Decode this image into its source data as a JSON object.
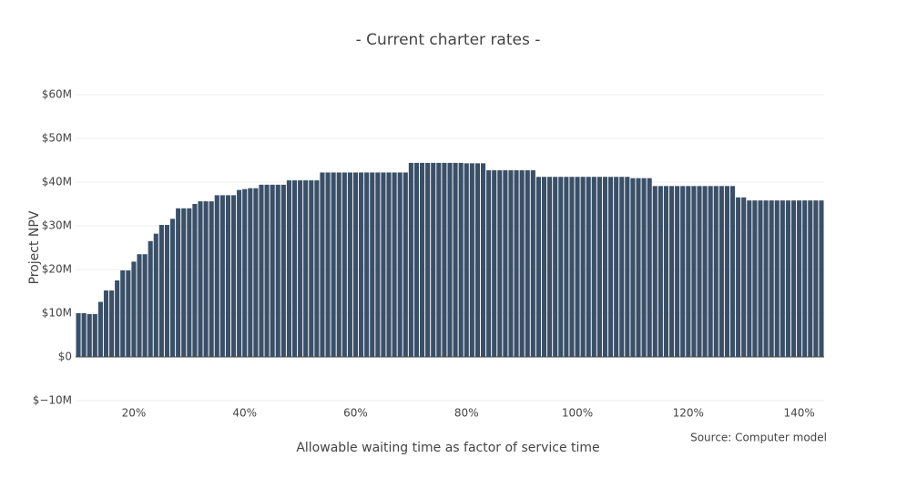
{
  "chart_data": {
    "type": "bar",
    "title": "-  Current charter rates  -",
    "x_label": "Allowable waiting time as factor of service time",
    "y_label": "Project NPV",
    "annotation": "Source: Computer model",
    "color": "#3a5069",
    "grid": true,
    "x": [
      10,
      11,
      12,
      13,
      14,
      15,
      16,
      17,
      18,
      19,
      20,
      21,
      22,
      23,
      24,
      25,
      26,
      27,
      28,
      29,
      30,
      31,
      32,
      33,
      34,
      35,
      36,
      37,
      38,
      39,
      40,
      41,
      42,
      43,
      44,
      45,
      46,
      47,
      48,
      49,
      50,
      51,
      52,
      53,
      54,
      55,
      56,
      57,
      58,
      59,
      60,
      61,
      62,
      63,
      64,
      65,
      66,
      67,
      68,
      69,
      70,
      71,
      72,
      73,
      74,
      75,
      76,
      77,
      78,
      79,
      80,
      81,
      82,
      83,
      84,
      85,
      86,
      87,
      88,
      89,
      90,
      91,
      92,
      93,
      94,
      95,
      96,
      97,
      98,
      99,
      100,
      101,
      102,
      103,
      104,
      105,
      106,
      107,
      108,
      109,
      110,
      111,
      112,
      113,
      114,
      115,
      116,
      117,
      118,
      119,
      120,
      121,
      122,
      123,
      124,
      125,
      126,
      127,
      128,
      129,
      130,
      131,
      132,
      133,
      134,
      135,
      136,
      137,
      138,
      139,
      140,
      141,
      142,
      143,
      144
    ],
    "values": [
      10000000,
      10000000,
      9800000,
      9800000,
      12600000,
      15200000,
      15200000,
      17500000,
      19800000,
      19800000,
      21800000,
      23500000,
      23500000,
      26500000,
      28200000,
      30200000,
      30200000,
      31600000,
      34000000,
      34000000,
      34000000,
      35000000,
      35600000,
      35600000,
      35600000,
      37000000,
      37000000,
      37000000,
      37000000,
      38200000,
      38400000,
      38600000,
      38600000,
      39400000,
      39400000,
      39400000,
      39400000,
      39400000,
      40400000,
      40400000,
      40400000,
      40400000,
      40400000,
      40400000,
      42200000,
      42200000,
      42200000,
      42200000,
      42200000,
      42200000,
      42200000,
      42200000,
      42200000,
      42200000,
      42200000,
      42200000,
      42200000,
      42200000,
      42200000,
      42200000,
      44400000,
      44400000,
      44400000,
      44400000,
      44400000,
      44400000,
      44400000,
      44400000,
      44400000,
      44400000,
      44300000,
      44300000,
      44300000,
      44300000,
      42700000,
      42700000,
      42700000,
      42700000,
      42700000,
      42700000,
      42700000,
      42700000,
      42700000,
      41200000,
      41200000,
      41200000,
      41200000,
      41200000,
      41200000,
      41200000,
      41200000,
      41200000,
      41200000,
      41200000,
      41200000,
      41200000,
      41200000,
      41200000,
      41200000,
      41200000,
      40900000,
      40900000,
      40900000,
      40900000,
      39100000,
      39100000,
      39100000,
      39100000,
      39100000,
      39100000,
      39100000,
      39100000,
      39100000,
      39100000,
      39100000,
      39100000,
      39100000,
      39100000,
      39100000,
      36500000,
      36500000,
      35800000,
      35800000,
      35800000,
      35800000,
      35800000,
      35800000,
      35800000,
      35800000,
      35800000,
      35800000,
      35800000,
      35800000,
      35800000,
      35800000
    ],
    "xlim": [
      9.5,
      144.5
    ],
    "xticks": [
      {
        "value": 20,
        "label": "20%"
      },
      {
        "value": 40,
        "label": "40%"
      },
      {
        "value": 60,
        "label": "60%"
      },
      {
        "value": 80,
        "label": "80%"
      },
      {
        "value": 100,
        "label": "100%"
      },
      {
        "value": 120,
        "label": "120%"
      },
      {
        "value": 140,
        "label": "140%"
      }
    ],
    "ylim": [
      -10000000,
      65000000
    ],
    "yticks": [
      {
        "value": -10000000,
        "label": "$−10M"
      },
      {
        "value": 0,
        "label": "$0"
      },
      {
        "value": 10000000,
        "label": "$10M"
      },
      {
        "value": 20000000,
        "label": "$20M"
      },
      {
        "value": 30000000,
        "label": "$30M"
      },
      {
        "value": 40000000,
        "label": "$40M"
      },
      {
        "value": 50000000,
        "label": "$50M"
      },
      {
        "value": 60000000,
        "label": "$60M"
      }
    ]
  }
}
